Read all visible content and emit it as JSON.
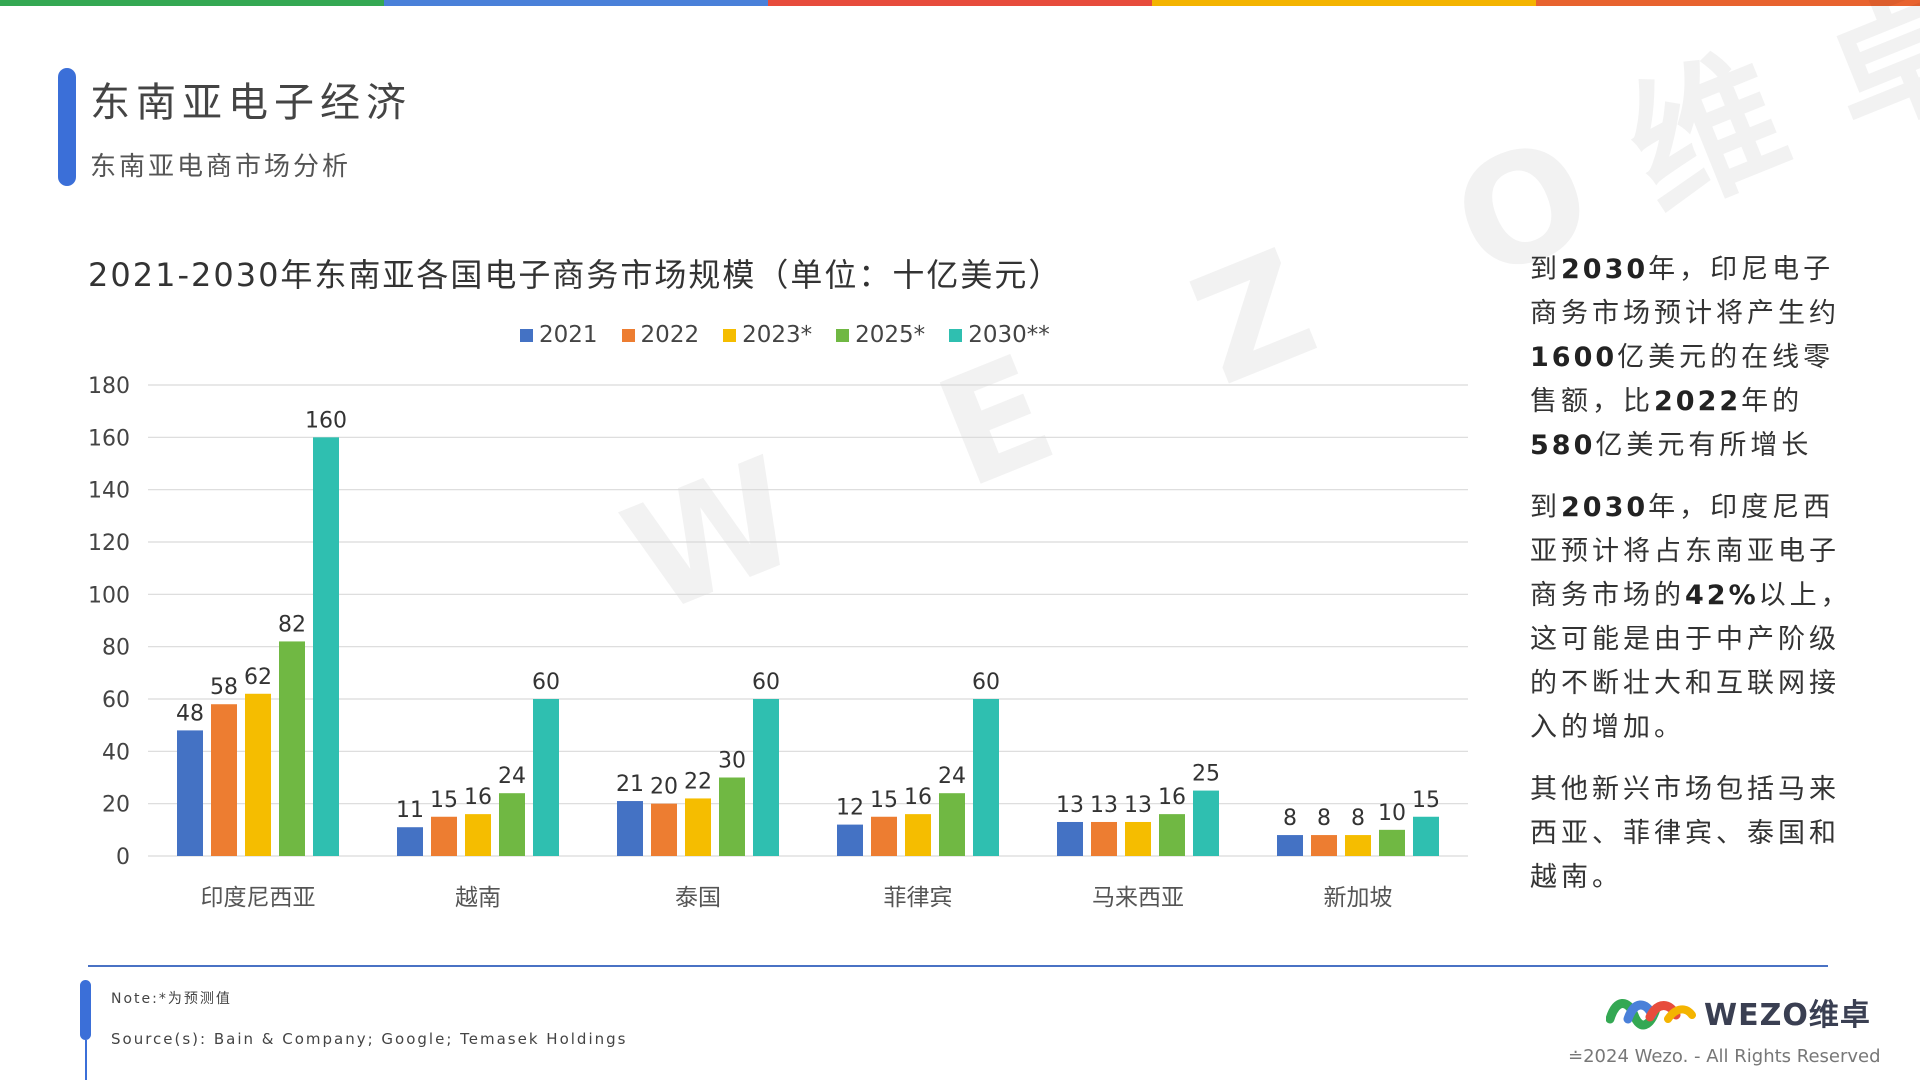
{
  "top_bar_colors": [
    "#34a853",
    "#4a80d9",
    "#e74c3c",
    "#f4b400",
    "#e8632f"
  ],
  "header": {
    "title": "东南亚电子经济",
    "subtitle": "东南亚电商市场分析"
  },
  "chart": {
    "title": "2021-2030年东南亚各国电子商务市场规模（单位：十亿美元）"
  },
  "watermark": "W E Z O维卓",
  "chart_data": {
    "type": "bar",
    "title": "2021-2030年东南亚各国电子商务市场规模（单位：十亿美元）",
    "categories": [
      "印度尼西亚",
      "越南",
      "泰国",
      "菲律宾",
      "马来西亚",
      "新加坡"
    ],
    "series": [
      {
        "name": "2021",
        "color": "#4472c4",
        "values": [
          48,
          11,
          21,
          12,
          13,
          8
        ]
      },
      {
        "name": "2022",
        "color": "#ed7d31",
        "values": [
          58,
          15,
          20,
          15,
          13,
          8
        ]
      },
      {
        "name": "2023*",
        "color": "#f5bd00",
        "values": [
          62,
          16,
          22,
          16,
          13,
          8
        ]
      },
      {
        "name": "2025*",
        "color": "#70b843",
        "values": [
          82,
          24,
          30,
          24,
          16,
          10
        ]
      },
      {
        "name": "2030**",
        "color": "#2fbfb0",
        "values": [
          160,
          60,
          60,
          60,
          25,
          15
        ]
      }
    ],
    "ylim": [
      0,
      180
    ],
    "yticks": [
      0,
      20,
      40,
      60,
      80,
      100,
      120,
      140,
      160,
      180
    ],
    "grid": true,
    "legend_position": "top"
  },
  "side_text": {
    "p1": {
      "t1": "到",
      "b1": "2030",
      "t2": "年，印尼电子商务市场预计将产生约",
      "b2": "1600",
      "t3": "亿美元的在线零售额，比",
      "b3": "2022",
      "t4": "年的",
      "b4": "580",
      "t5": "亿美元有所增长"
    },
    "p2": {
      "t1": "到",
      "b1": "2030",
      "t2": "年，印度尼西亚预计将占东南亚电子商务市场的",
      "b2": "42%",
      "t3": "以上，这可能是由于中产阶级的不断壮大和互联网接入的增加。"
    },
    "p3": "其他新兴市场包括马来西亚、菲律宾、泰国和越南。"
  },
  "footer": {
    "note": "Note:*为预测值",
    "source": "Source(s): Bain & Company; Google; Temasek Holdings",
    "logo_text": "WEZO维卓",
    "copyright": "≐2024 Wezo. - All Rights Reserved"
  }
}
